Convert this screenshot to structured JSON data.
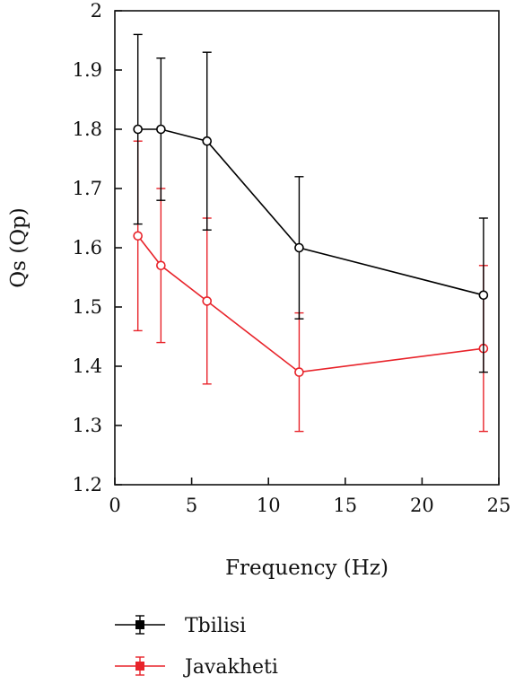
{
  "chart_data": {
    "type": "line",
    "title": "",
    "xlabel": "Frequency (Hz)",
    "ylabel": "Qs (Qp)",
    "xlim": [
      0,
      25
    ],
    "ylim": [
      1.2,
      2.0
    ],
    "x_ticks": [
      "0",
      "5",
      "10",
      "15",
      "20",
      "25"
    ],
    "y_ticks": [
      "1.2",
      "1.3",
      "1.4",
      "1.5",
      "1.6",
      "1.7",
      "1.8",
      "1.9",
      "2"
    ],
    "grid": false,
    "legend_position": "bottom",
    "series": [
      {
        "name": "Tbilisi",
        "color": "#000000",
        "marker": "open-circle",
        "x": [
          1.5,
          3,
          6,
          12,
          24
        ],
        "y": [
          1.8,
          1.8,
          1.78,
          1.6,
          1.52
        ],
        "error": [
          0.16,
          0.12,
          0.15,
          0.12,
          0.13
        ]
      },
      {
        "name": "Javakheti",
        "color": "#e8232a",
        "marker": "open-circle",
        "x": [
          1.5,
          3,
          6,
          12,
          24
        ],
        "y": [
          1.62,
          1.57,
          1.51,
          1.39,
          1.43
        ],
        "error": [
          0.16,
          0.13,
          0.14,
          0.1,
          0.14
        ]
      }
    ]
  }
}
